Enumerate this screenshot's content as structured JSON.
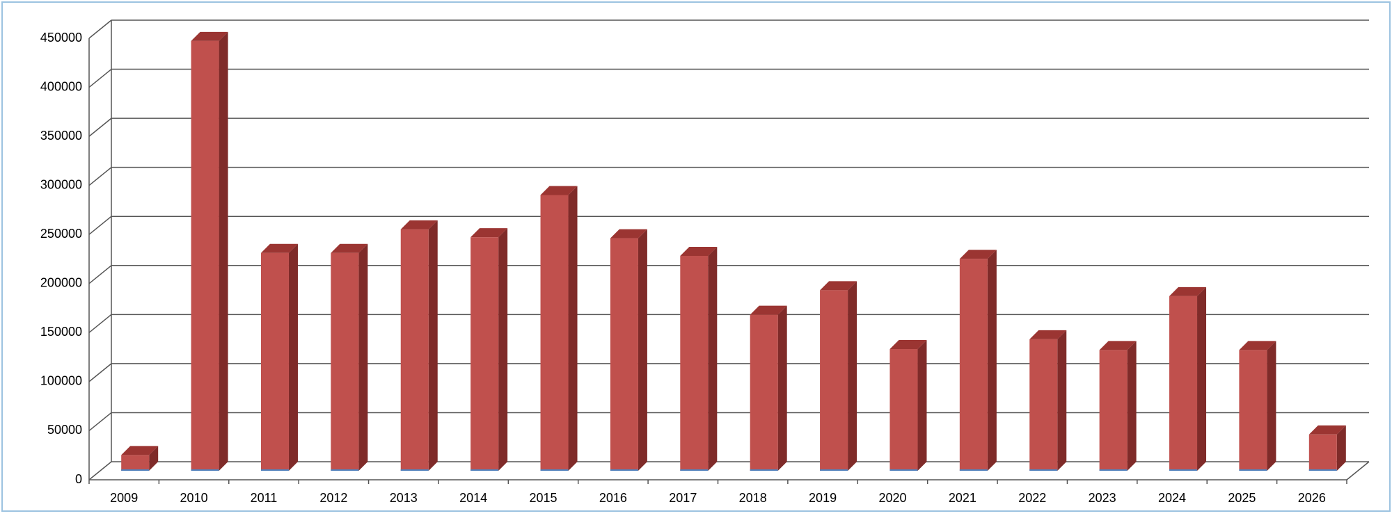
{
  "chart_data": {
    "type": "bar",
    "categories": [
      "2009",
      "2010",
      "2011",
      "2012",
      "2013",
      "2014",
      "2015",
      "2016",
      "2017",
      "2018",
      "2019",
      "2020",
      "2021",
      "2022",
      "2023",
      "2024",
      "2025",
      "2026"
    ],
    "values": [
      16000,
      438000,
      222000,
      222000,
      246000,
      238000,
      281000,
      237000,
      219000,
      159000,
      184000,
      124000,
      216000,
      134000,
      123000,
      178000,
      123000,
      37000
    ],
    "color": "#c0504d",
    "ylim": [
      0,
      450000
    ],
    "yticks": [
      0,
      50000,
      100000,
      150000,
      200000,
      250000,
      300000,
      350000,
      400000,
      450000
    ],
    "grid": true
  }
}
